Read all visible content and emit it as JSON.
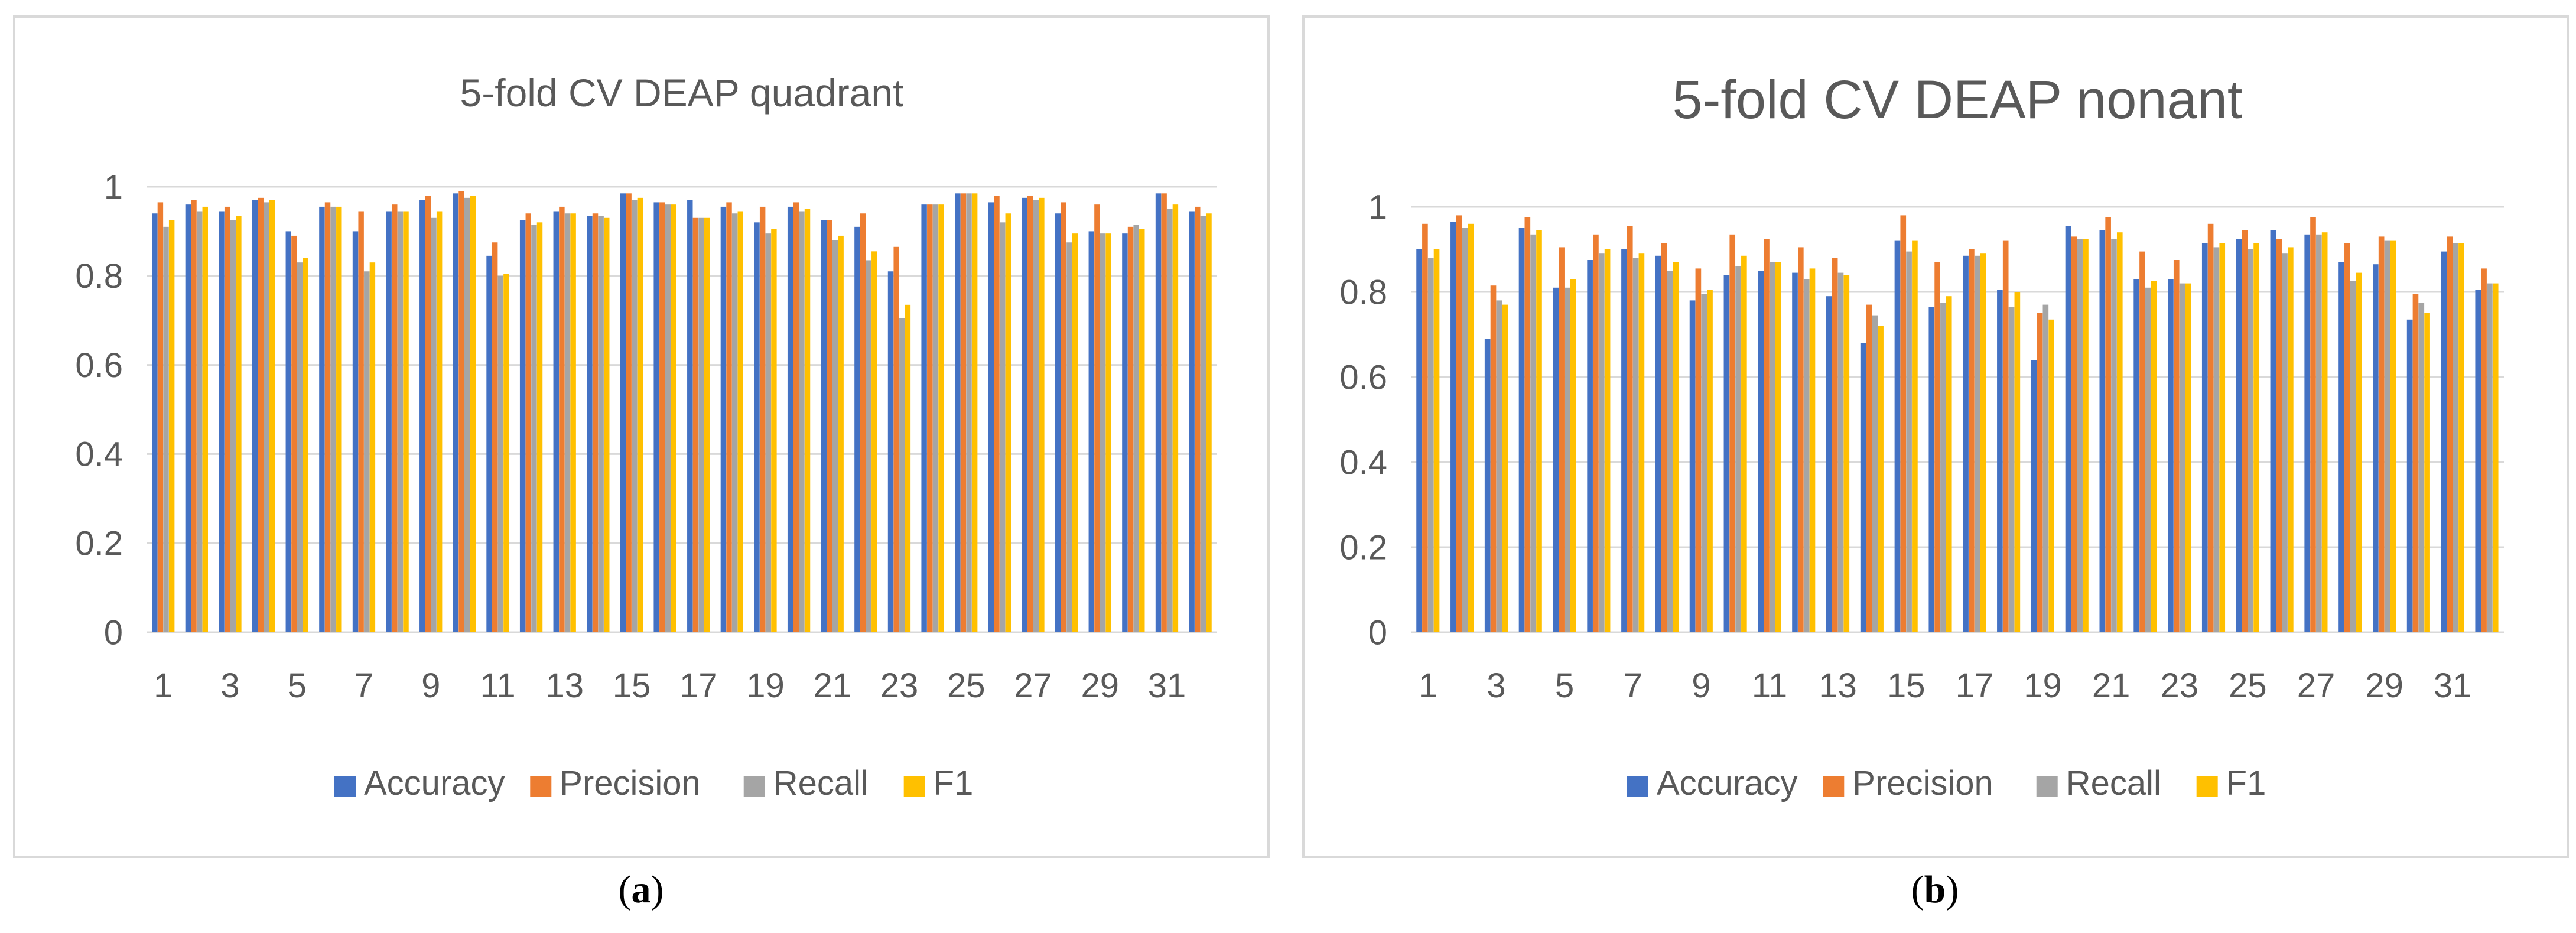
{
  "captions": {
    "a_letter": "a",
    "b_letter": "b"
  },
  "colors": {
    "Accuracy": "#4472c4",
    "Precision": "#ed7d31",
    "Recall": "#a5a5a5",
    "F1": "#ffc000",
    "grid": "#d9d9d9",
    "text": "#595959"
  },
  "chart_data": [
    {
      "type": "bar",
      "title": "5-fold CV DEAP quadrant",
      "xlabel": "",
      "ylabel": "",
      "ylim": [
        0,
        1
      ],
      "yticks": [
        "0",
        "0.2",
        "0.4",
        "0.6",
        "0.8",
        "1"
      ],
      "categories": [
        1,
        2,
        3,
        4,
        5,
        6,
        7,
        8,
        9,
        10,
        11,
        12,
        13,
        14,
        15,
        16,
        17,
        18,
        19,
        20,
        21,
        22,
        23,
        24,
        25,
        26,
        27,
        28,
        29,
        30,
        31,
        32
      ],
      "xtick_labels": [
        "1",
        "3",
        "5",
        "7",
        "9",
        "11",
        "13",
        "15",
        "17",
        "19",
        "21",
        "23",
        "25",
        "27",
        "29",
        "31"
      ],
      "grid": true,
      "legend": "bottom",
      "series": [
        {
          "name": "Accuracy",
          "values": [
            0.94,
            0.96,
            0.945,
            0.97,
            0.9,
            0.955,
            0.9,
            0.945,
            0.97,
            0.985,
            0.845,
            0.925,
            0.945,
            0.935,
            0.985,
            0.965,
            0.97,
            0.955,
            0.92,
            0.955,
            0.925,
            0.91,
            0.81,
            0.96,
            0.985,
            0.965,
            0.975,
            0.94,
            0.9,
            0.895,
            0.985,
            0.945
          ]
        },
        {
          "name": "Precision",
          "values": [
            0.965,
            0.97,
            0.955,
            0.975,
            0.89,
            0.965,
            0.945,
            0.96,
            0.98,
            0.99,
            0.875,
            0.94,
            0.955,
            0.94,
            0.985,
            0.965,
            0.93,
            0.965,
            0.955,
            0.965,
            0.925,
            0.94,
            0.865,
            0.96,
            0.985,
            0.98,
            0.98,
            0.965,
            0.96,
            0.91,
            0.985,
            0.955
          ]
        },
        {
          "name": "Recall",
          "values": [
            0.91,
            0.945,
            0.925,
            0.965,
            0.83,
            0.955,
            0.81,
            0.945,
            0.93,
            0.975,
            0.8,
            0.915,
            0.94,
            0.935,
            0.97,
            0.96,
            0.93,
            0.94,
            0.895,
            0.945,
            0.88,
            0.835,
            0.705,
            0.96,
            0.985,
            0.92,
            0.97,
            0.875,
            0.895,
            0.915,
            0.95,
            0.935
          ]
        },
        {
          "name": "F1",
          "values": [
            0.925,
            0.955,
            0.935,
            0.97,
            0.84,
            0.955,
            0.83,
            0.945,
            0.945,
            0.98,
            0.805,
            0.92,
            0.94,
            0.93,
            0.975,
            0.96,
            0.93,
            0.945,
            0.905,
            0.95,
            0.89,
            0.855,
            0.735,
            0.96,
            0.985,
            0.94,
            0.975,
            0.895,
            0.895,
            0.905,
            0.96,
            0.94
          ]
        }
      ]
    },
    {
      "type": "bar",
      "title": "5-fold CV DEAP nonant",
      "xlabel": "",
      "ylabel": "",
      "ylim": [
        0,
        1
      ],
      "yticks": [
        "0",
        "0.2",
        "0.4",
        "0.6",
        "0.8",
        "1"
      ],
      "categories": [
        1,
        2,
        3,
        4,
        5,
        6,
        7,
        8,
        9,
        10,
        11,
        12,
        13,
        14,
        15,
        16,
        17,
        18,
        19,
        20,
        21,
        22,
        23,
        24,
        25,
        26,
        27,
        28,
        29,
        30,
        31,
        32
      ],
      "xtick_labels": [
        "1",
        "3",
        "5",
        "7",
        "9",
        "11",
        "13",
        "15",
        "17",
        "19",
        "21",
        "23",
        "25",
        "27",
        "29",
        "31"
      ],
      "grid": true,
      "legend": "bottom",
      "series": [
        {
          "name": "Accuracy",
          "values": [
            0.9,
            0.965,
            0.69,
            0.95,
            0.81,
            0.875,
            0.9,
            0.885,
            0.78,
            0.84,
            0.85,
            0.845,
            0.79,
            0.68,
            0.92,
            0.765,
            0.885,
            0.805,
            0.64,
            0.955,
            0.945,
            0.83,
            0.83,
            0.915,
            0.925,
            0.945,
            0.935,
            0.87,
            0.865,
            0.735,
            0.895,
            0.805
          ]
        },
        {
          "name": "Precision",
          "values": [
            0.96,
            0.98,
            0.815,
            0.975,
            0.905,
            0.935,
            0.955,
            0.915,
            0.855,
            0.935,
            0.925,
            0.905,
            0.88,
            0.77,
            0.98,
            0.87,
            0.9,
            0.92,
            0.75,
            0.93,
            0.975,
            0.895,
            0.875,
            0.96,
            0.945,
            0.925,
            0.975,
            0.915,
            0.93,
            0.795,
            0.93,
            0.855
          ]
        },
        {
          "name": "Recall",
          "values": [
            0.88,
            0.95,
            0.78,
            0.935,
            0.81,
            0.89,
            0.88,
            0.85,
            0.795,
            0.86,
            0.87,
            0.83,
            0.845,
            0.745,
            0.895,
            0.775,
            0.885,
            0.765,
            0.77,
            0.925,
            0.925,
            0.81,
            0.82,
            0.905,
            0.9,
            0.89,
            0.935,
            0.825,
            0.92,
            0.775,
            0.915,
            0.82
          ]
        },
        {
          "name": "F1",
          "values": [
            0.9,
            0.96,
            0.77,
            0.945,
            0.83,
            0.9,
            0.89,
            0.87,
            0.805,
            0.885,
            0.87,
            0.855,
            0.84,
            0.72,
            0.92,
            0.79,
            0.89,
            0.8,
            0.735,
            0.925,
            0.94,
            0.825,
            0.82,
            0.915,
            0.915,
            0.905,
            0.94,
            0.845,
            0.92,
            0.75,
            0.915,
            0.82
          ]
        }
      ]
    }
  ]
}
